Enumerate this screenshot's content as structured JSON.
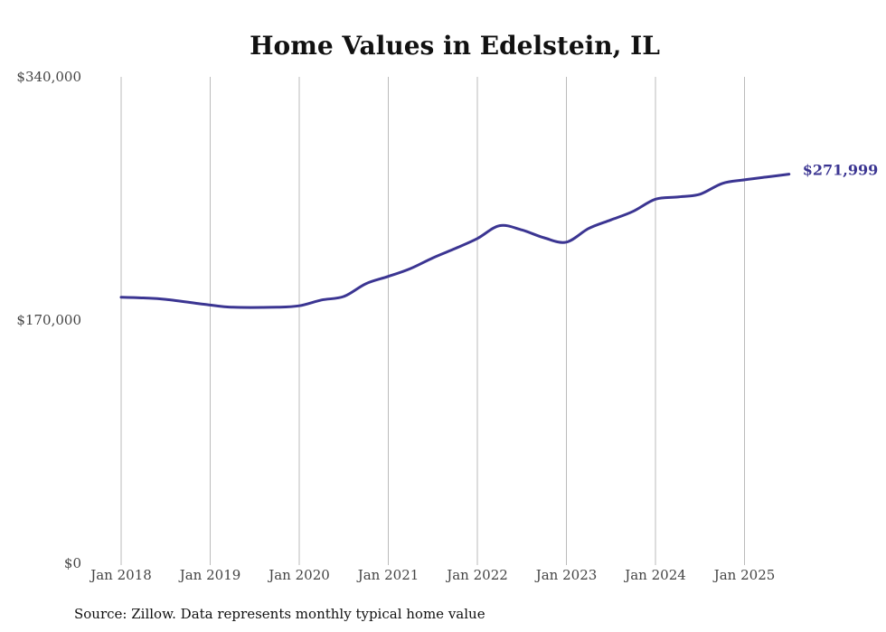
{
  "chart_data": {
    "type": "line",
    "title": "Home Values in Edelstein, IL",
    "xlabel": "",
    "ylabel": "",
    "source": "Source: Zillow. Data represents monthly typical home value",
    "ylim": [
      0,
      340000
    ],
    "y_ticks": [
      {
        "value": 0,
        "label": "$0"
      },
      {
        "value": 170000,
        "label": "$170,000"
      },
      {
        "value": 340000,
        "label": "$340,000"
      }
    ],
    "x_ticks": [
      "Jan 2018",
      "Jan 2019",
      "Jan 2020",
      "Jan 2021",
      "Jan 2022",
      "Jan 2023",
      "Jan 2024",
      "Jan 2025"
    ],
    "xlim": [
      "2018-01",
      "2025-07"
    ],
    "grid": "vertical",
    "line_color": "#3b3592",
    "end_label": "$271,999",
    "series": [
      {
        "x": [
          "2018-01",
          "2018-04",
          "2018-07",
          "2019-01",
          "2019-04",
          "2019-10",
          "2020-01",
          "2020-04",
          "2020-07",
          "2020-10",
          "2021-01",
          "2021-04",
          "2021-07",
          "2021-10",
          "2022-01",
          "2022-04",
          "2022-07",
          "2022-10",
          "2023-01",
          "2023-04",
          "2023-07",
          "2023-10",
          "2024-01",
          "2024-04",
          "2024-07",
          "2024-10",
          "2025-01",
          "2025-04",
          "2025-07"
        ],
        "values": [
          186000,
          185500,
          184500,
          180500,
          179000,
          179000,
          180000,
          184000,
          186500,
          195500,
          200500,
          206000,
          213500,
          220000,
          227000,
          236000,
          233000,
          227500,
          224500,
          234000,
          240000,
          246000,
          254500,
          256000,
          258000,
          265500,
          268000,
          270000,
          271999
        ]
      }
    ]
  }
}
